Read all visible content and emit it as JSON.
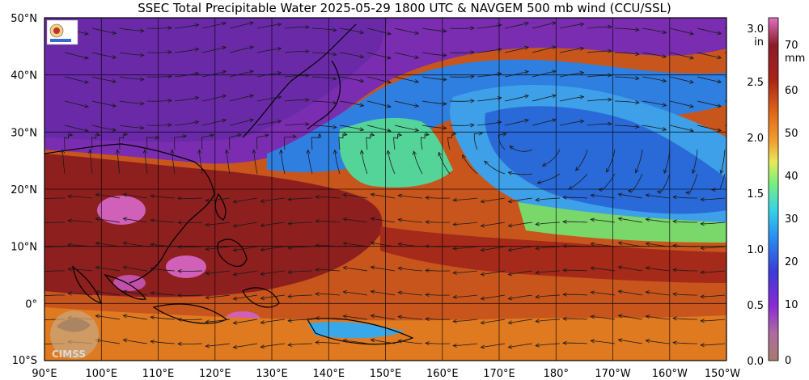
{
  "title": "SSEC Total Precipitable Water  2025-05-29 1800 UTC & NAVGEM 500 mb wind (CCU/SSL)",
  "map": {
    "lat_labels": [
      "50°N",
      "40°N",
      "30°N",
      "20°N",
      "10°N",
      "0°",
      "10°S"
    ],
    "lon_labels": [
      "90°E",
      "100°E",
      "110°E",
      "120°E",
      "130°E",
      "140°E",
      "150°E",
      "160°E",
      "170°E",
      "180°",
      "170°W",
      "160°W",
      "150°W"
    ],
    "lat_range": [
      -10,
      50
    ],
    "lon_range": [
      90,
      210
    ]
  },
  "colorbar": {
    "in_unit": "in",
    "mm_unit": "mm",
    "in_ticks": [
      "3.0",
      "2.5",
      "2.0",
      "1.5",
      "1.0",
      "0.5",
      "0.0"
    ],
    "mm_ticks": [
      "70",
      "60",
      "50",
      "40",
      "30",
      "20",
      "10",
      "0"
    ],
    "in_range": [
      0,
      3.15
    ],
    "mm_range": [
      0,
      80
    ]
  },
  "logos": {
    "cims": "CIMSS"
  }
}
